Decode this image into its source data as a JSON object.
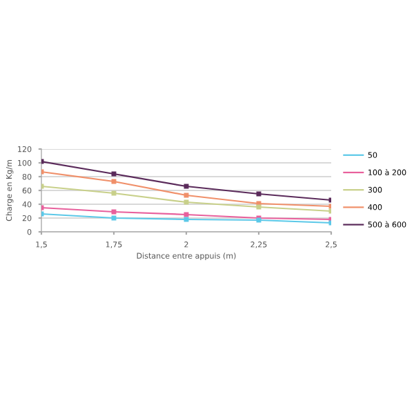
{
  "chart_data": {
    "type": "line",
    "xlabel": "Distance entre appuis (m)",
    "ylabel": "Charge en Kg/m",
    "x": [
      1.5,
      1.75,
      2,
      2.25,
      2.5
    ],
    "xlim": [
      1.5,
      2.5
    ],
    "xticks": [
      {
        "value": 1.5,
        "label": "1,5"
      },
      {
        "value": 1.75,
        "label": "1,75"
      },
      {
        "value": 2,
        "label": "2"
      },
      {
        "value": 2.25,
        "label": "2,25"
      },
      {
        "value": 2.5,
        "label": "2,5"
      }
    ],
    "ylim": [
      0,
      120
    ],
    "yticks": [
      0,
      20,
      40,
      60,
      80,
      100,
      120
    ],
    "grid": "y",
    "legend": "right",
    "marker": "square",
    "series": [
      {
        "name": "50",
        "color": "#5bc8e8",
        "values": [
          26,
          20,
          18,
          17,
          13
        ]
      },
      {
        "name": "100 à 200",
        "color": "#e8609c",
        "values": [
          35,
          29,
          25,
          20,
          18
        ]
      },
      {
        "name": "300",
        "color": "#c8d08a",
        "values": [
          66,
          56,
          43,
          36,
          30
        ]
      },
      {
        "name": "400",
        "color": "#f0906a",
        "values": [
          87,
          73,
          53,
          41,
          37
        ]
      },
      {
        "name": "500 à 600",
        "color": "#5a2a5a",
        "values": [
          102,
          84,
          66,
          55,
          46
        ]
      }
    ]
  }
}
